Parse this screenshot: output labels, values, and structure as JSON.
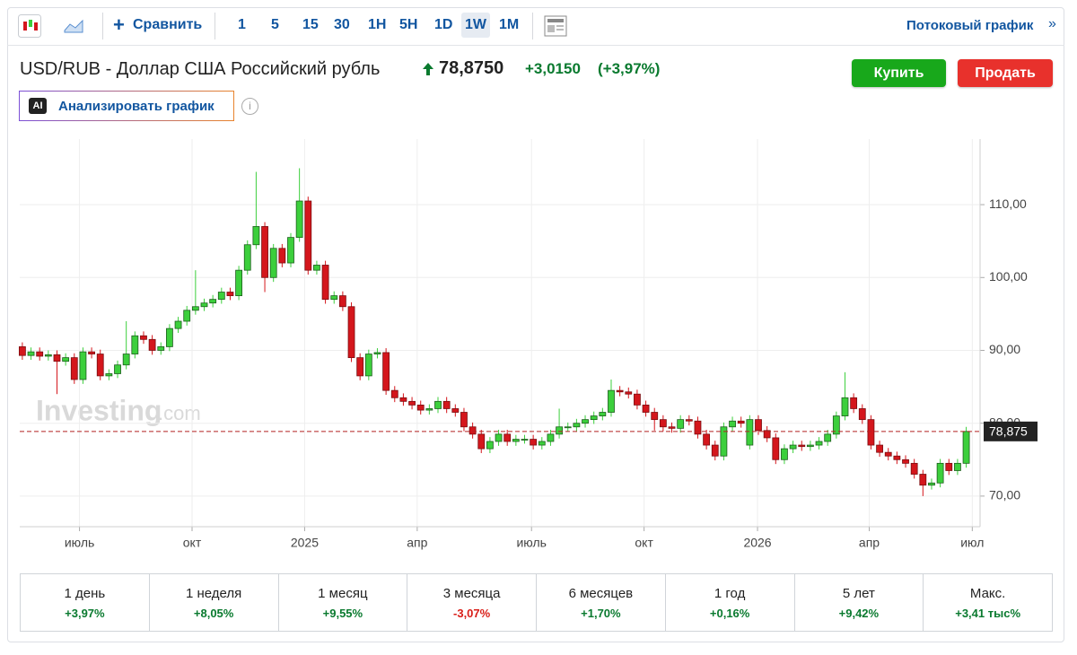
{
  "toolbar": {
    "compare": "Сравнить",
    "intervals": [
      "1",
      "5",
      "15",
      "30",
      "1H",
      "5H",
      "1D",
      "1W",
      "1M"
    ],
    "active_interval_index": 7,
    "stream": "Потоковый график",
    "stream_arrow": "»"
  },
  "header": {
    "title": "USD/RUB - Доллар США Российский рубль",
    "price": "78,8750",
    "change": "+3,0150",
    "change_pct": "(+3,97%)",
    "buy": "Купить",
    "sell": "Продать",
    "ai_badge": "AI",
    "analyze": "Анализировать график",
    "info": "i"
  },
  "watermark": {
    "brand": "Investing",
    "suffix": ".com"
  },
  "chart_data": {
    "type": "candlestick",
    "up_color": "#3ccf3c",
    "down_color": "#d4161c",
    "grid": true,
    "xlim": [
      -0.3,
      110.6
    ],
    "ylim": [
      65.8,
      119
    ],
    "yticks": [
      {
        "value": 70,
        "label": "70,00"
      },
      {
        "value": 80,
        "label": "80,00"
      },
      {
        "value": 90,
        "label": "90,00"
      },
      {
        "value": 100,
        "label": "100,00"
      },
      {
        "value": 110,
        "label": "110,00"
      }
    ],
    "xticks": [
      {
        "value": 6.6,
        "label": "июль"
      },
      {
        "value": 19.6,
        "label": "окт"
      },
      {
        "value": 32.6,
        "label": "2025"
      },
      {
        "value": 45.6,
        "label": "апр"
      },
      {
        "value": 58.8,
        "label": "июль"
      },
      {
        "value": 71.8,
        "label": "окт"
      },
      {
        "value": 84.9,
        "label": "2026"
      },
      {
        "value": 97.8,
        "label": "апр"
      },
      {
        "value": 109.7,
        "label": "июл"
      }
    ],
    "price_line": {
      "value": 78.875,
      "label": "78,875"
    },
    "open": [
      90.5,
      89.3,
      89.8,
      89.2,
      89.4,
      88.5,
      89,
      86,
      89.8,
      89.5,
      86.5,
      86.8,
      88,
      89.5,
      92,
      91.5,
      90,
      90.5,
      93,
      94,
      95.5,
      96,
      96.5,
      97,
      98,
      97.5,
      101,
      104.5,
      107,
      100,
      104,
      102,
      105.5,
      110.5,
      101,
      101.7,
      97,
      97.5,
      96,
      89,
      86.5,
      89.5,
      89.7,
      84.5,
      83.5,
      83,
      82.5,
      81.8,
      82,
      83,
      82,
      81.5,
      79.5,
      78.5,
      76.5,
      77.5,
      78.5,
      77.5,
      77.8,
      77.8,
      77,
      77.5,
      78.5,
      79.5,
      79.5,
      80,
      80.5,
      81,
      81.5,
      84.5,
      84.3,
      84,
      82.5,
      81.5,
      80.5,
      79.5,
      79.3,
      80.5,
      80.3,
      78.5,
      77,
      75.5,
      79.5,
      80.3,
      77,
      80.5,
      79,
      78,
      75,
      76.5,
      77,
      76.8,
      77,
      77.5,
      78.5,
      81,
      83.5,
      82,
      80.5,
      77,
      76,
      75.5,
      75,
      74.5,
      73,
      71.5,
      71.8,
      74.5,
      73.5,
      74.5
    ],
    "high": [
      91.1,
      90.4,
      90.4,
      90,
      90,
      89.6,
      89.6,
      90.4,
      90.4,
      90.1,
      87.4,
      88.6,
      94,
      92.6,
      92.6,
      92.1,
      91.1,
      93.6,
      94.6,
      96.1,
      101,
      97.1,
      97.6,
      98.6,
      98.6,
      101.6,
      105.1,
      114.5,
      107.6,
      104.6,
      104.6,
      106.1,
      115,
      111.1,
      102.3,
      102.3,
      98.1,
      98.1,
      96.6,
      89.6,
      90.1,
      90.3,
      90.3,
      85.1,
      84.1,
      83.6,
      83.1,
      82.6,
      83.6,
      83.6,
      82.6,
      82.1,
      80.1,
      79.1,
      78.1,
      79.1,
      79.1,
      78.4,
      78.4,
      78.4,
      78.1,
      79.1,
      82,
      80.1,
      80.6,
      81.1,
      81.6,
      82.1,
      86,
      85.1,
      84.9,
      84.6,
      83.1,
      82.1,
      81.1,
      80.1,
      81.1,
      81.1,
      80.9,
      79.1,
      77.6,
      80.1,
      80.9,
      80.9,
      81.1,
      81.1,
      79.6,
      78.6,
      77.1,
      77.6,
      77.6,
      77.6,
      78.1,
      79.1,
      81.6,
      87,
      84.1,
      82.6,
      81.1,
      77.6,
      76.6,
      76.1,
      75.6,
      75.1,
      73.6,
      72.4,
      75.1,
      75.1,
      75.1,
      79.5
    ],
    "low": [
      88.7,
      88.7,
      88.6,
      88.6,
      84,
      87.9,
      85.4,
      85.4,
      88.9,
      85.9,
      85.9,
      86.2,
      87.4,
      88.9,
      90.9,
      89.4,
      89.4,
      89.9,
      92.4,
      93.4,
      94.9,
      95.4,
      95.9,
      96.4,
      96.9,
      96.9,
      100.4,
      103.9,
      98,
      99.4,
      101.4,
      101.4,
      104.9,
      100.4,
      100.4,
      96.4,
      96.4,
      95.4,
      88.4,
      85.9,
      85.9,
      88.9,
      83.9,
      82.9,
      82.4,
      81.9,
      81.2,
      81.2,
      81.4,
      81.4,
      80.9,
      78.9,
      77.9,
      75.9,
      75.9,
      76.9,
      76.9,
      76.9,
      77.2,
      76.4,
      76.4,
      76.9,
      77.9,
      78.9,
      78.9,
      79.4,
      79.9,
      80.4,
      80.9,
      83.7,
      83.4,
      81.9,
      80.9,
      79,
      78.9,
      78.7,
      78.7,
      79.7,
      77.9,
      76.4,
      74.9,
      74.9,
      78.9,
      79.4,
      76.4,
      78.4,
      77.4,
      74.4,
      74.4,
      75.9,
      76.2,
      76.2,
      76.4,
      76.9,
      77.9,
      80.4,
      81.4,
      79.9,
      76.4,
      75.4,
      74.9,
      74.4,
      73.9,
      72.4,
      70,
      70.9,
      71.2,
      72.9,
      72.9,
      73.9
    ],
    "close": [
      89.3,
      89.8,
      89.2,
      89.4,
      88.5,
      89,
      86,
      89.8,
      89.5,
      86.5,
      86.8,
      88,
      89.5,
      92,
      91.5,
      90,
      90.5,
      93,
      94,
      95.5,
      96,
      96.5,
      97,
      98,
      97.5,
      101,
      104.5,
      107,
      100,
      104,
      102,
      105.5,
      110.5,
      101,
      101.7,
      97,
      97.5,
      96,
      89,
      86.5,
      89.5,
      89.7,
      84.5,
      83.5,
      83,
      82.5,
      81.8,
      82,
      83,
      82,
      81.5,
      79.5,
      78.5,
      76.5,
      77.5,
      78.5,
      77.5,
      77.8,
      77.8,
      77,
      77.5,
      78.5,
      79.5,
      79.5,
      80,
      80.5,
      81,
      81.5,
      84.5,
      84.3,
      84,
      82.5,
      81.5,
      80.5,
      79.5,
      79.3,
      80.5,
      80.3,
      78.5,
      77,
      75.5,
      79.5,
      80.3,
      80,
      80.5,
      79,
      78,
      75,
      76.5,
      77,
      76.8,
      77,
      77.5,
      78.5,
      81,
      83.5,
      82,
      80.5,
      77,
      76,
      75.5,
      75,
      74.5,
      73,
      71.5,
      71.8,
      74.5,
      73.5,
      74.5,
      78.875
    ]
  },
  "periods": [
    {
      "label": "1 день",
      "change": "+3,97%"
    },
    {
      "label": "1 неделя",
      "change": "+8,05%"
    },
    {
      "label": "1 месяц",
      "change": "+9,55%"
    },
    {
      "label": "3 месяца",
      "change": "-3,07%"
    },
    {
      "label": "6 месяцев",
      "change": "+1,70%"
    },
    {
      "label": "1 год",
      "change": "+0,16%"
    },
    {
      "label": "5 лет",
      "change": "+9,42%"
    },
    {
      "label": "Макс.",
      "change": "+3,41 тыс%"
    }
  ]
}
